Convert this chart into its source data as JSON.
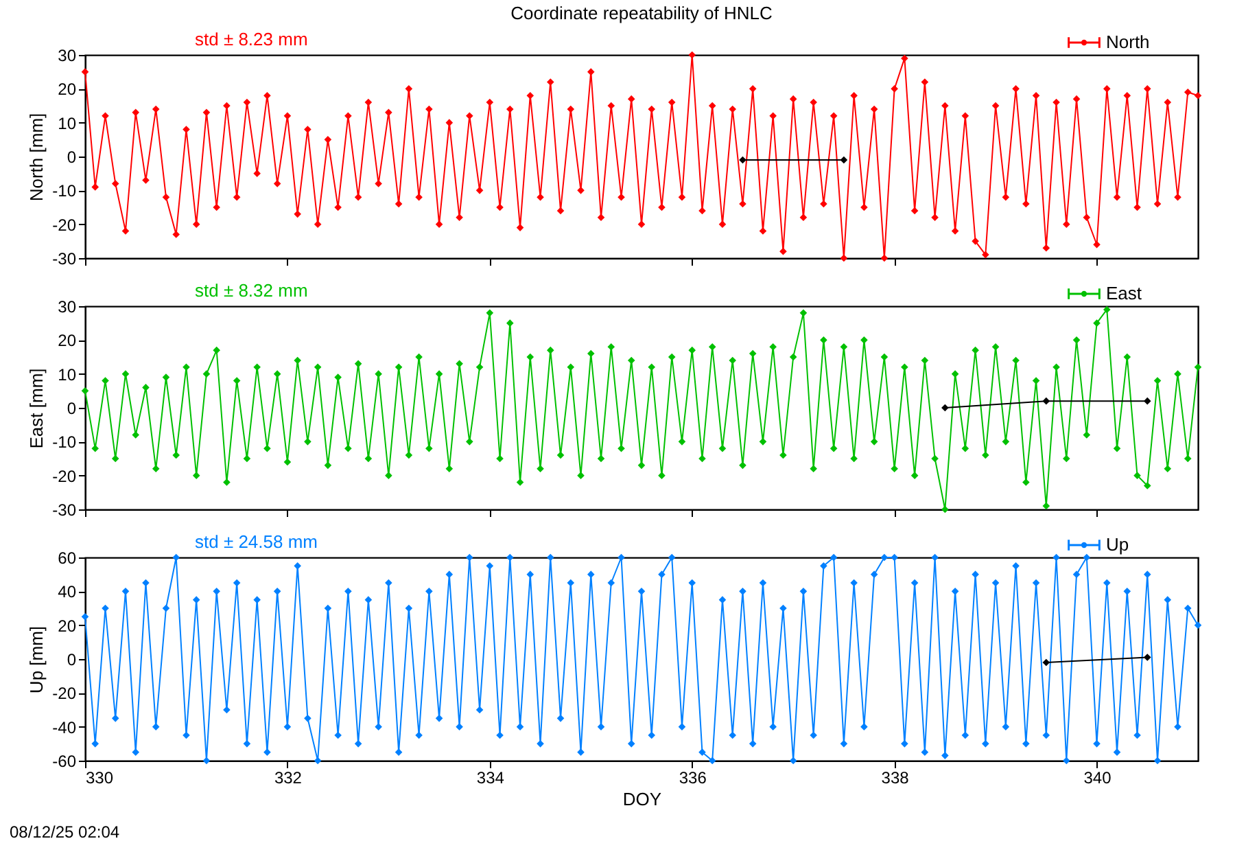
{
  "chart_data": [
    {
      "type": "line",
      "title": "Coordinate repeatability of HNLC",
      "ylabel": "North [mm]",
      "x": [
        330.0,
        330.1,
        330.2,
        330.3,
        330.4,
        330.5,
        330.6,
        330.7,
        330.8,
        330.9,
        331.0,
        331.1,
        331.2,
        331.3,
        331.4,
        331.5,
        331.6,
        331.7,
        331.8,
        331.9,
        332.0,
        332.1,
        332.2,
        332.3,
        332.4,
        332.5,
        332.6,
        332.7,
        332.8,
        332.9,
        333.0,
        333.1,
        333.2,
        333.3,
        333.4,
        333.5,
        333.6,
        333.7,
        333.8,
        333.9,
        334.0,
        334.1,
        334.2,
        334.3,
        334.4,
        334.5,
        334.6,
        334.7,
        334.8,
        334.9,
        335.0,
        335.1,
        335.2,
        335.3,
        335.4,
        335.5,
        335.6,
        335.7,
        335.8,
        335.9,
        336.0,
        336.1,
        336.2,
        336.3,
        336.4,
        336.5,
        336.6,
        336.7,
        336.8,
        336.9,
        337.0,
        337.1,
        337.2,
        337.3,
        337.4,
        337.5,
        337.6,
        337.7,
        337.8,
        337.9,
        338.0,
        338.1,
        338.2,
        338.3,
        338.4,
        338.5,
        338.6,
        338.7,
        338.8,
        338.9,
        339.0,
        339.1,
        339.2,
        339.3,
        339.4,
        339.5,
        339.6,
        339.7,
        339.8,
        339.9,
        340.0,
        340.1,
        340.2,
        340.3,
        340.4,
        340.5,
        340.6,
        340.7,
        340.8,
        340.9,
        341.0
      ],
      "series": [
        {
          "name": "North",
          "color": "#ff0000",
          "values": [
            25,
            -9,
            12,
            -8,
            -22,
            13,
            -7,
            14,
            -12,
            -23,
            8,
            -20,
            13,
            -15,
            15,
            -12,
            16,
            -5,
            18,
            -8,
            12,
            -17,
            8,
            -20,
            5,
            -15,
            12,
            -12,
            16,
            -8,
            13,
            -14,
            20,
            -12,
            14,
            -20,
            10,
            -18,
            12,
            -10,
            16,
            -15,
            14,
            -21,
            18,
            -12,
            22,
            -16,
            14,
            -10,
            25,
            -18,
            15,
            -12,
            17,
            -20,
            14,
            -15,
            16,
            -12,
            30,
            -16,
            15,
            -20,
            14,
            -14,
            20,
            -22,
            12,
            -28,
            17,
            -18,
            16,
            -14,
            12,
            -30,
            18,
            -15,
            14,
            -30,
            20,
            29,
            -16,
            22,
            -18,
            15,
            -22,
            12,
            -25,
            -29,
            15,
            -12,
            20,
            -14,
            18,
            -27,
            16,
            -20,
            17,
            -18,
            -26,
            20,
            -12,
            18,
            -15,
            20,
            -14,
            16,
            -12,
            19,
            18
          ]
        },
        {
          "color": "#000000",
          "x": [
            336.5,
            337.5
          ],
          "values": [
            -1,
            -1
          ]
        }
      ],
      "xlim": [
        330,
        341
      ],
      "xticks": [
        330,
        332,
        334,
        336,
        338,
        340
      ],
      "ylim": [
        -30,
        30
      ],
      "yticks": [
        -30,
        -20,
        -10,
        0,
        10,
        20,
        30
      ],
      "tick_labels": "y",
      "legend": "top right",
      "marker": "diamond",
      "annotations": [
        "std ± 8.23 mm"
      ]
    },
    {
      "type": "line",
      "ylabel": "East [mm]",
      "x": [
        330.0,
        330.1,
        330.2,
        330.3,
        330.4,
        330.5,
        330.6,
        330.7,
        330.8,
        330.9,
        331.0,
        331.1,
        331.2,
        331.3,
        331.4,
        331.5,
        331.6,
        331.7,
        331.8,
        331.9,
        332.0,
        332.1,
        332.2,
        332.3,
        332.4,
        332.5,
        332.6,
        332.7,
        332.8,
        332.9,
        333.0,
        333.1,
        333.2,
        333.3,
        333.4,
        333.5,
        333.6,
        333.7,
        333.8,
        333.9,
        334.0,
        334.1,
        334.2,
        334.3,
        334.4,
        334.5,
        334.6,
        334.7,
        334.8,
        334.9,
        335.0,
        335.1,
        335.2,
        335.3,
        335.4,
        335.5,
        335.6,
        335.7,
        335.8,
        335.9,
        336.0,
        336.1,
        336.2,
        336.3,
        336.4,
        336.5,
        336.6,
        336.7,
        336.8,
        336.9,
        337.0,
        337.1,
        337.2,
        337.3,
        337.4,
        337.5,
        337.6,
        337.7,
        337.8,
        337.9,
        338.0,
        338.1,
        338.2,
        338.3,
        338.4,
        338.5,
        338.6,
        338.7,
        338.8,
        338.9,
        339.0,
        339.1,
        339.2,
        339.3,
        339.4,
        339.5,
        339.6,
        339.7,
        339.8,
        339.9,
        340.0,
        340.1,
        340.2,
        340.3,
        340.4,
        340.5,
        340.6,
        340.7,
        340.8,
        340.9,
        341.0
      ],
      "series": [
        {
          "name": "East",
          "color": "#00c000",
          "values": [
            5,
            -12,
            8,
            -15,
            10,
            -8,
            6,
            -18,
            9,
            -14,
            12,
            -20,
            10,
            17,
            -22,
            8,
            -15,
            12,
            -12,
            10,
            -16,
            14,
            -10,
            12,
            -17,
            9,
            -12,
            13,
            -15,
            10,
            -20,
            12,
            -14,
            15,
            -12,
            10,
            -18,
            13,
            -10,
            12,
            28,
            -15,
            25,
            -22,
            15,
            -18,
            17,
            -14,
            12,
            -20,
            16,
            -15,
            18,
            -12,
            14,
            -17,
            12,
            -20,
            15,
            -10,
            17,
            -15,
            18,
            -12,
            14,
            -17,
            16,
            -10,
            18,
            -14,
            15,
            28,
            -18,
            20,
            -12,
            18,
            -15,
            20,
            -10,
            15,
            -18,
            12,
            -20,
            14,
            -15,
            -30,
            10,
            -12,
            17,
            -14,
            18,
            -10,
            14,
            -22,
            8,
            -29,
            12,
            -15,
            20,
            -8,
            25,
            29,
            -12,
            15,
            -20,
            -23,
            8,
            -18,
            10,
            -15,
            12
          ]
        },
        {
          "color": "#000000",
          "x": [
            338.5,
            339.5,
            340.5
          ],
          "values": [
            0,
            2,
            2
          ]
        }
      ],
      "xlim": [
        330,
        341
      ],
      "xticks": [
        330,
        332,
        334,
        336,
        338,
        340
      ],
      "ylim": [
        -30,
        30
      ],
      "yticks": [
        -30,
        -20,
        -10,
        0,
        10,
        20,
        30
      ],
      "tick_labels": "y",
      "legend": "top right",
      "marker": "diamond",
      "annotations": [
        "std ± 8.32 mm"
      ]
    },
    {
      "type": "line",
      "ylabel": "Up [mm]",
      "xlabel": "DOY",
      "x": [
        330.0,
        330.1,
        330.2,
        330.3,
        330.4,
        330.5,
        330.6,
        330.7,
        330.8,
        330.9,
        331.0,
        331.1,
        331.2,
        331.3,
        331.4,
        331.5,
        331.6,
        331.7,
        331.8,
        331.9,
        332.0,
        332.1,
        332.2,
        332.3,
        332.4,
        332.5,
        332.6,
        332.7,
        332.8,
        332.9,
        333.0,
        333.1,
        333.2,
        333.3,
        333.4,
        333.5,
        333.6,
        333.7,
        333.8,
        333.9,
        334.0,
        334.1,
        334.2,
        334.3,
        334.4,
        334.5,
        334.6,
        334.7,
        334.8,
        334.9,
        335.0,
        335.1,
        335.2,
        335.3,
        335.4,
        335.5,
        335.6,
        335.7,
        335.8,
        335.9,
        336.0,
        336.1,
        336.2,
        336.3,
        336.4,
        336.5,
        336.6,
        336.7,
        336.8,
        336.9,
        337.0,
        337.1,
        337.2,
        337.3,
        337.4,
        337.5,
        337.6,
        337.7,
        337.8,
        337.9,
        338.0,
        338.1,
        338.2,
        338.3,
        338.4,
        338.5,
        338.6,
        338.7,
        338.8,
        338.9,
        339.0,
        339.1,
        339.2,
        339.3,
        339.4,
        339.5,
        339.6,
        339.7,
        339.8,
        339.9,
        340.0,
        340.1,
        340.2,
        340.3,
        340.4,
        340.5,
        340.6,
        340.7,
        340.8,
        340.9,
        341.0
      ],
      "series": [
        {
          "name": "Up",
          "color": "#0080ff",
          "values": [
            25,
            -50,
            30,
            -35,
            40,
            -55,
            45,
            -40,
            30,
            60,
            -45,
            35,
            -60,
            40,
            -30,
            45,
            -50,
            35,
            -55,
            40,
            -40,
            55,
            -35,
            -60,
            30,
            -45,
            40,
            -50,
            35,
            -40,
            45,
            -55,
            30,
            -45,
            40,
            -35,
            50,
            -40,
            60,
            -30,
            55,
            -45,
            60,
            -40,
            50,
            -50,
            60,
            -35,
            45,
            -55,
            50,
            -40,
            45,
            60,
            -50,
            40,
            -45,
            50,
            60,
            -40,
            45,
            -55,
            -60,
            35,
            -45,
            40,
            -50,
            45,
            -40,
            30,
            -60,
            40,
            -45,
            55,
            60,
            -50,
            45,
            -40,
            50,
            60,
            60,
            -50,
            45,
            -55,
            60,
            -57,
            40,
            -45,
            50,
            -50,
            45,
            -40,
            55,
            -50,
            45,
            -45,
            60,
            -60,
            50,
            60,
            -50,
            45,
            -55,
            40,
            -45,
            50,
            -60,
            35,
            -40,
            30,
            20
          ]
        },
        {
          "color": "#000000",
          "x": [
            339.5,
            340.5
          ],
          "values": [
            -2,
            1
          ]
        }
      ],
      "xlim": [
        330,
        341
      ],
      "xticks": [
        330,
        332,
        334,
        336,
        338,
        340
      ],
      "ylim": [
        -60,
        60
      ],
      "yticks": [
        -60,
        -40,
        -20,
        0,
        20,
        40,
        60
      ],
      "legend": "top right",
      "marker": "diamond",
      "annotations": [
        "std ± 24.58 mm",
        "08/12/25 02:04"
      ]
    }
  ]
}
